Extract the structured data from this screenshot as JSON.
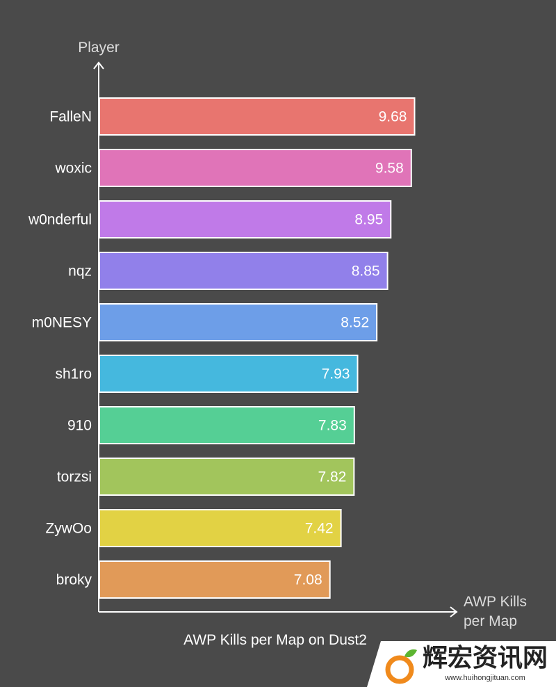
{
  "chart_data": {
    "type": "bar",
    "orientation": "horizontal",
    "title": "AWP Kills per Map on Dust2",
    "ylabel": "Player",
    "xlabel_lines": [
      "AWP Kills",
      "per Map"
    ],
    "categories": [
      "FalleN",
      "woxic",
      "w0nderful",
      "nqz",
      "m0NESY",
      "sh1ro",
      "910",
      "torzsi",
      "ZywOo",
      "broky"
    ],
    "values": [
      9.68,
      9.58,
      8.95,
      8.85,
      8.52,
      7.93,
      7.83,
      7.82,
      7.42,
      7.08
    ],
    "value_labels": [
      "9.68",
      "9.58",
      "8.95",
      "8.85",
      "8.52",
      "7.93",
      "7.83",
      "7.82",
      "7.42",
      "7.08"
    ],
    "colors": [
      "#e8756f",
      "#e074b8",
      "#c07ae8",
      "#9180ea",
      "#6d9ee8",
      "#45b8de",
      "#55cf95",
      "#a2c55c",
      "#e2d244",
      "#e19a58"
    ],
    "xlim": [
      0,
      11.1
    ],
    "grid": false,
    "legend": "none"
  },
  "watermark": {
    "text": "辉宏资讯网",
    "url": "www.huihongjituan.com"
  }
}
